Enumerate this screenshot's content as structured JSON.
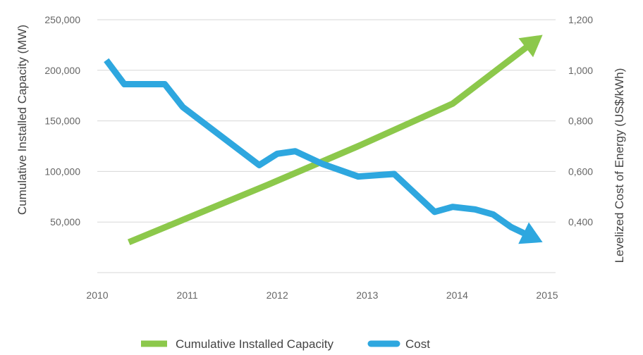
{
  "chart_data": {
    "type": "line",
    "x_ticks": [
      "2010",
      "2011",
      "2012",
      "2013",
      "2014",
      "2015"
    ],
    "y_left": {
      "label": "Cumulative Installed Capacity (MW)",
      "ticks": [
        "250,000",
        "200,000",
        "150,000",
        "100,000",
        "50,000"
      ],
      "tick_values": [
        250000,
        200000,
        150000,
        100000,
        50000
      ],
      "range": [
        0,
        250000
      ]
    },
    "y_right": {
      "label": "Levelized Cost of Energy (US$/kWh)",
      "ticks": [
        "1,200",
        "1,000",
        "0,800",
        "0,600",
        "0,400"
      ],
      "tick_values": [
        1.2,
        1.0,
        0.8,
        0.6,
        0.4
      ],
      "range": [
        0.2,
        1.2
      ]
    },
    "grid": true,
    "legend_position": "bottom",
    "series": [
      {
        "name": "Cumulative Installed Capacity",
        "axis": "left",
        "color": "#8cc84b",
        "arrow_end": true,
        "points": [
          [
            2010.35,
            30000
          ],
          [
            2011.9,
            87000
          ],
          [
            2012.9,
            125000
          ],
          [
            2013.95,
            167000
          ],
          [
            2014.95,
            235000
          ]
        ]
      },
      {
        "name": "Cost",
        "axis": "right",
        "color": "#2ea7df",
        "arrow_end": true,
        "points": [
          [
            2010.1,
            1.04
          ],
          [
            2010.3,
            0.945
          ],
          [
            2010.75,
            0.945
          ],
          [
            2010.95,
            0.855
          ],
          [
            2011.8,
            0.625
          ],
          [
            2012.0,
            0.67
          ],
          [
            2012.2,
            0.68
          ],
          [
            2012.5,
            0.63
          ],
          [
            2012.9,
            0.58
          ],
          [
            2013.3,
            0.59
          ],
          [
            2013.75,
            0.44
          ],
          [
            2013.95,
            0.46
          ],
          [
            2014.2,
            0.45
          ],
          [
            2014.4,
            0.43
          ],
          [
            2014.6,
            0.38
          ],
          [
            2014.95,
            0.32
          ]
        ]
      }
    ]
  }
}
